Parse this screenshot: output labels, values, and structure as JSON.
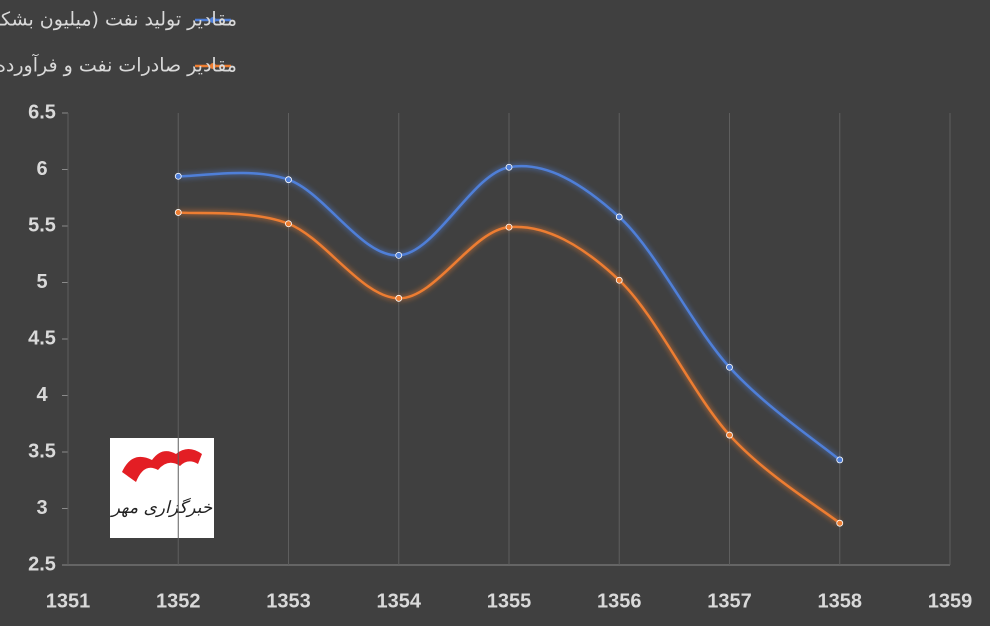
{
  "chart_data": {
    "type": "line",
    "x": [
      1352,
      1353,
      1354,
      1355,
      1356,
      1357,
      1358
    ],
    "series": [
      {
        "name": "مقادیر تولید نفت (میلیون بشکه در روز)",
        "color": "#4f7fd8",
        "values": [
          5.94,
          5.91,
          5.24,
          6.02,
          5.58,
          4.25,
          3.43
        ]
      },
      {
        "name": "مقادیر صادرات نفت و فرآورده‌های آن (میلیون بشکه در روز)",
        "color": "#ed7d31",
        "values": [
          5.62,
          5.52,
          4.86,
          5.49,
          5.02,
          3.65,
          2.87
        ]
      }
    ],
    "xlim": [
      1351,
      1359
    ],
    "xticks": [
      1351,
      1352,
      1353,
      1354,
      1355,
      1356,
      1357,
      1358,
      1359
    ],
    "ylim": [
      2.5,
      6.5
    ],
    "yticks": [
      2.5,
      3,
      3.5,
      4,
      4.5,
      5,
      5.5,
      6,
      6.5
    ],
    "grid": true,
    "smooth": true,
    "legend": "top"
  },
  "watermark": "خبرگزاری مهر"
}
